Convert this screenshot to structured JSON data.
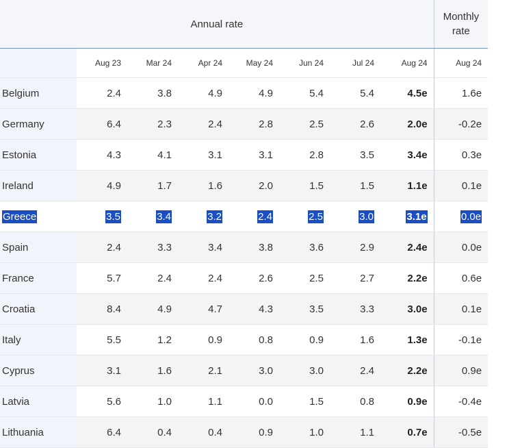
{
  "header": {
    "annual_rate": "Annual rate",
    "monthly_rate_line1": "Monthly",
    "monthly_rate_line2": "rate"
  },
  "columns": [
    "Aug 23",
    "Mar 24",
    "Apr 24",
    "May 24",
    "Jun 24",
    "Jul 24",
    "Aug 24",
    "Aug 24"
  ],
  "rows": [
    {
      "country": "Belgium",
      "values": [
        "2.4",
        "3.8",
        "4.9",
        "4.9",
        "5.4",
        "5.4",
        "4.5e",
        "1.6e"
      ]
    },
    {
      "country": "Germany",
      "values": [
        "6.4",
        "2.3",
        "2.4",
        "2.8",
        "2.5",
        "2.6",
        "2.0e",
        "-0.2e"
      ]
    },
    {
      "country": "Estonia",
      "values": [
        "4.3",
        "4.1",
        "3.1",
        "3.1",
        "2.8",
        "3.5",
        "3.4e",
        "0.3e"
      ]
    },
    {
      "country": "Ireland",
      "values": [
        "4.9",
        "1.7",
        "1.6",
        "2.0",
        "1.5",
        "1.5",
        "1.1e",
        "0.1e"
      ]
    },
    {
      "country": "Greece",
      "values": [
        "3.5",
        "3.4",
        "3.2",
        "2.4",
        "2.5",
        "3.0",
        "3.1e",
        "0.0e"
      ],
      "selected": true
    },
    {
      "country": "Spain",
      "values": [
        "2.4",
        "3.3",
        "3.4",
        "3.8",
        "3.6",
        "2.9",
        "2.4e",
        "0.0e"
      ]
    },
    {
      "country": "France",
      "values": [
        "5.7",
        "2.4",
        "2.4",
        "2.6",
        "2.5",
        "2.7",
        "2.2e",
        "0.6e"
      ]
    },
    {
      "country": "Croatia",
      "values": [
        "8.4",
        "4.9",
        "4.7",
        "4.3",
        "3.5",
        "3.3",
        "3.0e",
        "0.1e"
      ]
    },
    {
      "country": "Italy",
      "values": [
        "5.5",
        "1.2",
        "0.9",
        "0.8",
        "0.9",
        "1.6",
        "1.3e",
        "-0.1e"
      ]
    },
    {
      "country": "Cyprus",
      "values": [
        "3.1",
        "1.6",
        "2.1",
        "3.0",
        "3.0",
        "2.4",
        "2.2e",
        "0.9e"
      ]
    },
    {
      "country": "Latvia",
      "values": [
        "5.6",
        "1.0",
        "1.1",
        "0.0",
        "1.5",
        "0.8",
        "0.9e",
        "-0.4e"
      ]
    },
    {
      "country": "Lithuania",
      "values": [
        "6.4",
        "0.4",
        "0.4",
        "0.9",
        "1.0",
        "1.1",
        "0.7e",
        "-0.5e"
      ]
    }
  ],
  "colors": {
    "selection": "#1a4ec2",
    "header_rule": "#6d93c9",
    "country_column_bg": "#f2f4fb"
  }
}
